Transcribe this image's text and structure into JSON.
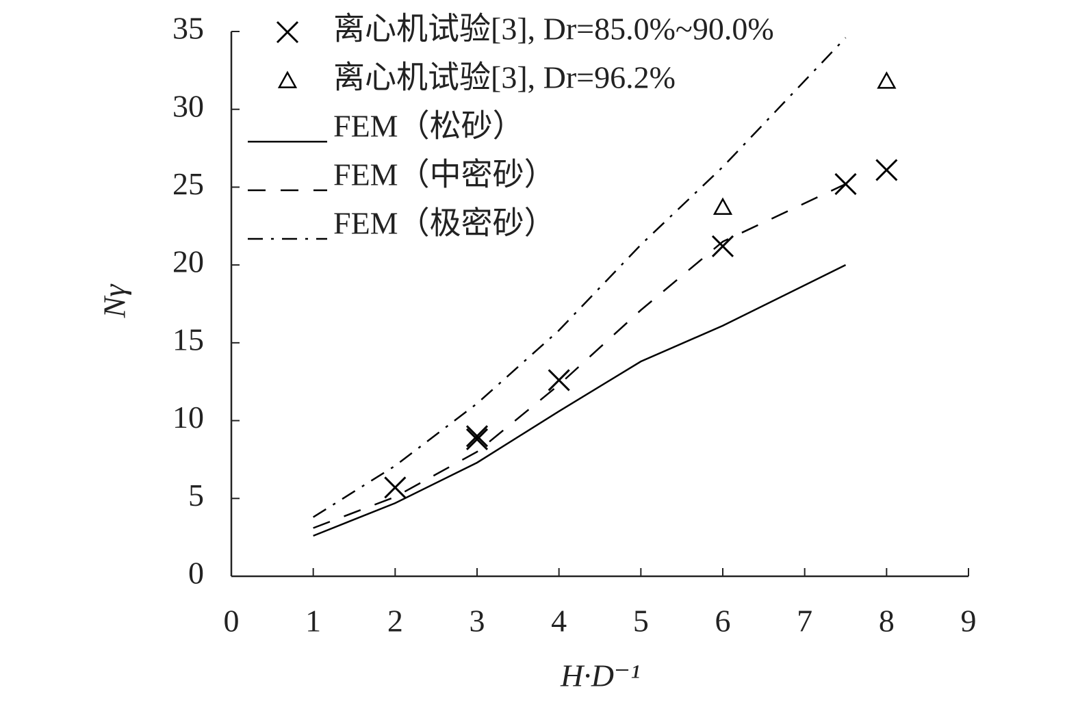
{
  "chart_data": {
    "type": "line",
    "xlabel": "H·D⁻¹",
    "ylabel": "Nγ",
    "xlim": [
      0,
      9
    ],
    "xticks": [
      0,
      1,
      2,
      3,
      4,
      5,
      6,
      7,
      8,
      9
    ],
    "ylim": [
      0,
      35
    ],
    "yticks": [
      0,
      5,
      10,
      15,
      20,
      25,
      30,
      35
    ],
    "legend": "upper left",
    "series": [
      {
        "name": "离心机试验[3], Dr=85.0%~90.0%",
        "color": "#000000",
        "style": "none",
        "marker": "x",
        "x": [
          2,
          3,
          3,
          4,
          6,
          7.5,
          8
        ],
        "values": [
          5.7,
          8.8,
          9.0,
          12.6,
          21.2,
          25.2,
          26.1
        ]
      },
      {
        "name": "离心机试验[3], Dr=96.2%",
        "color": "#000000",
        "style": "none",
        "marker": "triangle",
        "x": [
          6,
          8
        ],
        "values": [
          23.7,
          31.8
        ]
      },
      {
        "name": "FEM（松砂）",
        "color": "#000000",
        "style": "solid",
        "marker": null,
        "x": [
          1,
          2,
          3,
          4,
          5,
          6,
          7.5
        ],
        "values": [
          2.6,
          4.7,
          7.3,
          10.6,
          13.8,
          16.1,
          20.0
        ]
      },
      {
        "name": "FEM（中密砂）",
        "color": "#000000",
        "style": "dashed",
        "marker": null,
        "x": [
          1,
          2,
          3,
          4,
          5,
          6,
          7.5
        ],
        "values": [
          3.1,
          5.1,
          8.0,
          12.3,
          17.1,
          21.5,
          25.2
        ]
      },
      {
        "name": "FEM（极密砂）",
        "color": "#000000",
        "style": "dashdot",
        "marker": null,
        "x": [
          1,
          2,
          3,
          4,
          5,
          6,
          7.5
        ],
        "values": [
          3.8,
          7.1,
          11.1,
          15.8,
          21.3,
          26.3,
          34.6
        ]
      }
    ]
  }
}
